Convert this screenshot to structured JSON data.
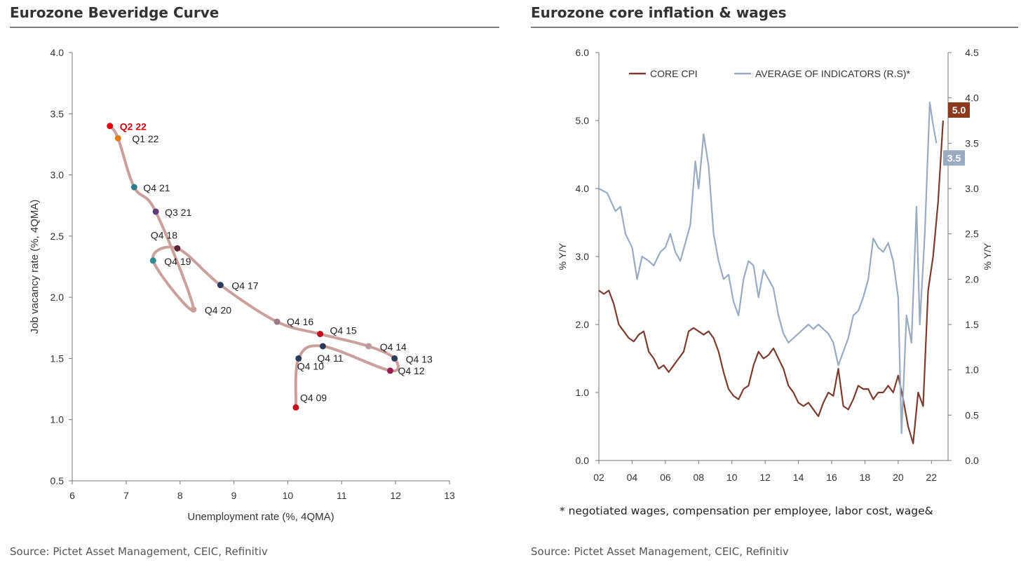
{
  "chart_data": [
    {
      "type": "scatter",
      "title": "Eurozone Beveridge Curve",
      "xlabel": "Unemployment rate (%, 4QMA)",
      "ylabel": "Job vacancy rate (%, 4QMA)",
      "xlim": [
        6,
        13
      ],
      "ylim": [
        0.5,
        4.0
      ],
      "xticks": [
        "6",
        "7",
        "8",
        "9",
        "10",
        "11",
        "12",
        "13"
      ],
      "yticks": [
        "0.5",
        "1.0",
        "1.5",
        "2.0",
        "2.5",
        "3.0",
        "3.5",
        "4.0"
      ],
      "grid": false,
      "line_color": "#c9a09e",
      "points": [
        {
          "label": "Q4 09",
          "x": 10.15,
          "y": 1.1,
          "color": "#c0101e"
        },
        {
          "label": "Q4 10",
          "x": 10.2,
          "y": 1.5,
          "color": "#2b3b5c"
        },
        {
          "label": "Q4 11",
          "x": 10.65,
          "y": 1.6,
          "color": "#2b3b5c"
        },
        {
          "label": "Q4 12",
          "x": 11.9,
          "y": 1.4,
          "color": "#9b1c4e"
        },
        {
          "label": "Q4 13",
          "x": 11.98,
          "y": 1.5,
          "color": "#2b3b5c"
        },
        {
          "label": "Q4 14",
          "x": 11.5,
          "y": 1.6,
          "color": "#b89aa0"
        },
        {
          "label": "Q4 15",
          "x": 10.6,
          "y": 1.7,
          "color": "#c0101e"
        },
        {
          "label": "Q4 16",
          "x": 9.8,
          "y": 1.8,
          "color": "#9b7a85"
        },
        {
          "label": "Q4 17",
          "x": 8.75,
          "y": 2.1,
          "color": "#2b3b5c"
        },
        {
          "label": "Q4 18",
          "x": 7.95,
          "y": 2.4,
          "color": "#5a2433"
        },
        {
          "label": "Q4 19",
          "x": 7.5,
          "y": 2.3,
          "color": "#2e8a8f"
        },
        {
          "label": "Q4 20",
          "x": 8.25,
          "y": 1.9,
          "color": "#c9a09e"
        },
        {
          "label": "Q3 21",
          "x": 7.55,
          "y": 2.7,
          "color": "#5b3c7a"
        },
        {
          "label": "Q4 21",
          "x": 7.15,
          "y": 2.9,
          "color": "#2e7d8f"
        },
        {
          "label": "Q1 22",
          "x": 6.85,
          "y": 3.3,
          "color": "#e07b1a"
        },
        {
          "label": "Q2 22",
          "x": 6.7,
          "y": 3.4,
          "color": "#e0000f",
          "highlight": true
        }
      ],
      "source": "Source: Pictet Asset Management, CEIC, Refinitiv"
    },
    {
      "type": "line",
      "title": "Eurozone core inflation & wages",
      "ylabel_left": "% Y/Y",
      "ylabel_right": "% Y/Y",
      "xlim": [
        2002,
        2023
      ],
      "ylim_left": [
        0.0,
        6.0
      ],
      "ylim_right": [
        0.0,
        4.5
      ],
      "xticks": [
        "02",
        "04",
        "06",
        "08",
        "10",
        "12",
        "14",
        "16",
        "18",
        "20",
        "22"
      ],
      "yticks_left": [
        "0.0",
        "1.0",
        "2.0",
        "3.0",
        "4.0",
        "5.0",
        "6.0"
      ],
      "yticks_right": [
        "0.0",
        "0.5",
        "1.0",
        "1.5",
        "2.0",
        "2.5",
        "3.0",
        "3.5",
        "4.0",
        "4.5"
      ],
      "legend_position": "top",
      "series": [
        {
          "name": "CORE CPI",
          "axis": "left",
          "color": "#7b3b2e",
          "end_label": "5.0",
          "end_label_color": "#8b3a1e",
          "points": [
            [
              2002.0,
              2.5
            ],
            [
              2002.3,
              2.45
            ],
            [
              2002.6,
              2.5
            ],
            [
              2002.9,
              2.3
            ],
            [
              2003.2,
              2.0
            ],
            [
              2003.5,
              1.9
            ],
            [
              2003.8,
              1.8
            ],
            [
              2004.1,
              1.75
            ],
            [
              2004.4,
              1.85
            ],
            [
              2004.7,
              1.9
            ],
            [
              2005.0,
              1.6
            ],
            [
              2005.3,
              1.5
            ],
            [
              2005.6,
              1.35
            ],
            [
              2005.9,
              1.4
            ],
            [
              2006.2,
              1.3
            ],
            [
              2006.5,
              1.4
            ],
            [
              2006.8,
              1.5
            ],
            [
              2007.1,
              1.6
            ],
            [
              2007.4,
              1.9
            ],
            [
              2007.7,
              1.95
            ],
            [
              2008.0,
              1.9
            ],
            [
              2008.3,
              1.85
            ],
            [
              2008.6,
              1.9
            ],
            [
              2008.9,
              1.8
            ],
            [
              2009.2,
              1.6
            ],
            [
              2009.5,
              1.3
            ],
            [
              2009.8,
              1.05
            ],
            [
              2010.1,
              0.95
            ],
            [
              2010.4,
              0.9
            ],
            [
              2010.7,
              1.05
            ],
            [
              2011.0,
              1.1
            ],
            [
              2011.3,
              1.4
            ],
            [
              2011.6,
              1.6
            ],
            [
              2011.9,
              1.5
            ],
            [
              2012.2,
              1.55
            ],
            [
              2012.5,
              1.65
            ],
            [
              2012.8,
              1.5
            ],
            [
              2013.1,
              1.35
            ],
            [
              2013.4,
              1.1
            ],
            [
              2013.7,
              1.0
            ],
            [
              2014.0,
              0.85
            ],
            [
              2014.3,
              0.8
            ],
            [
              2014.6,
              0.85
            ],
            [
              2014.9,
              0.75
            ],
            [
              2015.2,
              0.65
            ],
            [
              2015.5,
              0.85
            ],
            [
              2015.8,
              1.0
            ],
            [
              2016.1,
              0.95
            ],
            [
              2016.4,
              1.35
            ],
            [
              2016.7,
              0.8
            ],
            [
              2017.0,
              0.75
            ],
            [
              2017.3,
              0.9
            ],
            [
              2017.6,
              1.1
            ],
            [
              2017.9,
              1.05
            ],
            [
              2018.2,
              1.05
            ],
            [
              2018.5,
              0.9
            ],
            [
              2018.8,
              1.0
            ],
            [
              2019.1,
              1.0
            ],
            [
              2019.4,
              1.1
            ],
            [
              2019.7,
              1.0
            ],
            [
              2020.0,
              1.25
            ],
            [
              2020.3,
              0.9
            ],
            [
              2020.6,
              0.5
            ],
            [
              2020.9,
              0.25
            ],
            [
              2021.2,
              1.0
            ],
            [
              2021.5,
              0.8
            ],
            [
              2021.8,
              2.5
            ],
            [
              2022.1,
              3.0
            ],
            [
              2022.4,
              3.8
            ],
            [
              2022.6,
              4.6
            ],
            [
              2022.7,
              5.0
            ]
          ]
        },
        {
          "name": "AVERAGE OF INDICATORS (R.S)*",
          "axis": "right",
          "color": "#9aaac1",
          "end_label": "3.5",
          "end_label_color": "#9aaac1",
          "points": [
            [
              2002.0,
              3.0
            ],
            [
              2002.5,
              2.95
            ],
            [
              2003.0,
              2.75
            ],
            [
              2003.3,
              2.8
            ],
            [
              2003.6,
              2.5
            ],
            [
              2004.0,
              2.35
            ],
            [
              2004.3,
              2.0
            ],
            [
              2004.6,
              2.25
            ],
            [
              2005.0,
              2.2
            ],
            [
              2005.3,
              2.15
            ],
            [
              2005.7,
              2.3
            ],
            [
              2006.0,
              2.35
            ],
            [
              2006.3,
              2.5
            ],
            [
              2006.6,
              2.3
            ],
            [
              2006.9,
              2.2
            ],
            [
              2007.2,
              2.4
            ],
            [
              2007.5,
              2.6
            ],
            [
              2007.8,
              3.3
            ],
            [
              2008.0,
              3.0
            ],
            [
              2008.3,
              3.6
            ],
            [
              2008.6,
              3.25
            ],
            [
              2008.9,
              2.5
            ],
            [
              2009.2,
              2.2
            ],
            [
              2009.5,
              2.0
            ],
            [
              2009.8,
              2.05
            ],
            [
              2010.1,
              1.75
            ],
            [
              2010.4,
              1.6
            ],
            [
              2010.7,
              2.0
            ],
            [
              2011.0,
              2.2
            ],
            [
              2011.3,
              2.15
            ],
            [
              2011.6,
              1.8
            ],
            [
              2011.9,
              2.1
            ],
            [
              2012.2,
              2.0
            ],
            [
              2012.5,
              1.9
            ],
            [
              2012.8,
              1.6
            ],
            [
              2013.1,
              1.4
            ],
            [
              2013.4,
              1.3
            ],
            [
              2013.7,
              1.35
            ],
            [
              2014.0,
              1.4
            ],
            [
              2014.3,
              1.45
            ],
            [
              2014.6,
              1.5
            ],
            [
              2014.9,
              1.45
            ],
            [
              2015.2,
              1.5
            ],
            [
              2015.5,
              1.45
            ],
            [
              2015.8,
              1.4
            ],
            [
              2016.1,
              1.3
            ],
            [
              2016.4,
              1.05
            ],
            [
              2016.7,
              1.2
            ],
            [
              2017.0,
              1.35
            ],
            [
              2017.3,
              1.6
            ],
            [
              2017.6,
              1.65
            ],
            [
              2017.9,
              1.8
            ],
            [
              2018.2,
              2.0
            ],
            [
              2018.5,
              2.45
            ],
            [
              2018.8,
              2.35
            ],
            [
              2019.1,
              2.3
            ],
            [
              2019.4,
              2.4
            ],
            [
              2019.7,
              2.2
            ],
            [
              2020.0,
              1.8
            ],
            [
              2020.2,
              0.3
            ],
            [
              2020.5,
              1.6
            ],
            [
              2020.8,
              1.3
            ],
            [
              2021.1,
              2.8
            ],
            [
              2021.3,
              1.5
            ],
            [
              2021.6,
              2.5
            ],
            [
              2021.9,
              3.95
            ],
            [
              2022.1,
              3.7
            ],
            [
              2022.3,
              3.5
            ]
          ]
        }
      ],
      "footnote": "* negotiated wages, compensation per employee, labor cost, wage&",
      "source": "Source: Pictet Asset Management, CEIC, Refinitiv"
    }
  ]
}
